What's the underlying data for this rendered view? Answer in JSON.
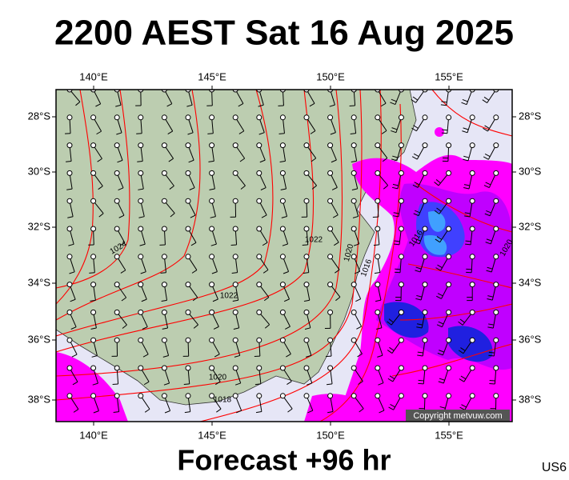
{
  "title": "2200 AEST Sat 16 Aug 2025",
  "longitude_labels": [
    "140°E",
    "145°E",
    "150°E",
    "155°E"
  ],
  "latitude_labels": [
    "28°S",
    "30°S",
    "32°S",
    "34°S",
    "36°S",
    "38°S"
  ],
  "isobar_labels": [
    "1024",
    "1022",
    "1022",
    "1020",
    "1016",
    "1016",
    "1020",
    "1018",
    "1020"
  ],
  "copyright": "Copyright metvuw.com",
  "footer": "Forecast +96 hr",
  "code": "US6"
}
